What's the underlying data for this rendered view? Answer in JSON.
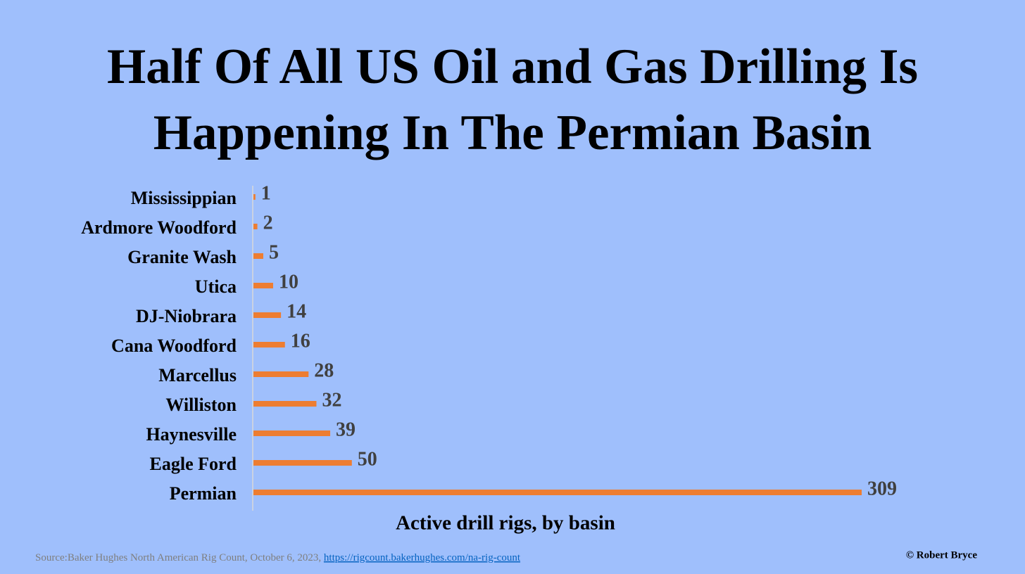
{
  "chart_data": {
    "type": "bar",
    "orientation": "horizontal",
    "title": "Half Of All US Oil and Gas Drilling Is Happening In The Permian Basin",
    "x_label": "Active drill rigs, by basin",
    "categories": [
      "Mississippian",
      "Ardmore Woodford",
      "Granite Wash",
      "Utica",
      "DJ-Niobrara",
      "Cana Woodford",
      "Marcellus",
      "Williston",
      "Haynesville",
      "Eagle Ford",
      "Permian"
    ],
    "values": [
      1,
      2,
      5,
      10,
      14,
      16,
      28,
      32,
      39,
      50,
      309
    ],
    "color": "#ed7d31",
    "source": "Source:Baker Hughes North American Rig Count, October 6, 2023,",
    "source_url": "https://rigcount.bakerhughes.com/na-rig-count",
    "credit": "© Robert Bryce"
  }
}
